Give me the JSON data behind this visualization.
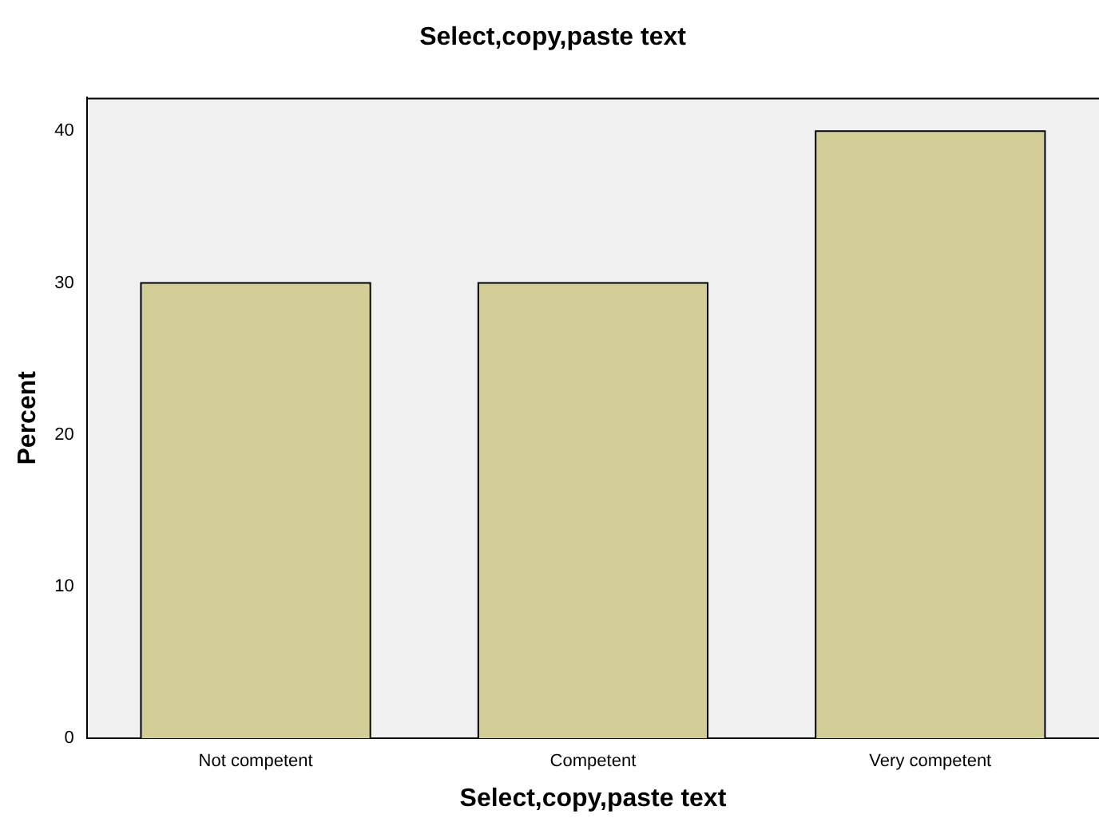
{
  "chart_data": {
    "type": "bar",
    "title": "Select,copy,paste text",
    "xlabel": "Select,copy,paste text",
    "ylabel": "Percent",
    "categories": [
      "Not competent",
      "Competent",
      "Very competent"
    ],
    "values": [
      30,
      30,
      40
    ],
    "color": "#d3ce97",
    "ylim": [
      0,
      42.2
    ],
    "yticks": [
      0,
      10,
      20,
      30,
      40
    ],
    "grid": false,
    "legend": false
  }
}
